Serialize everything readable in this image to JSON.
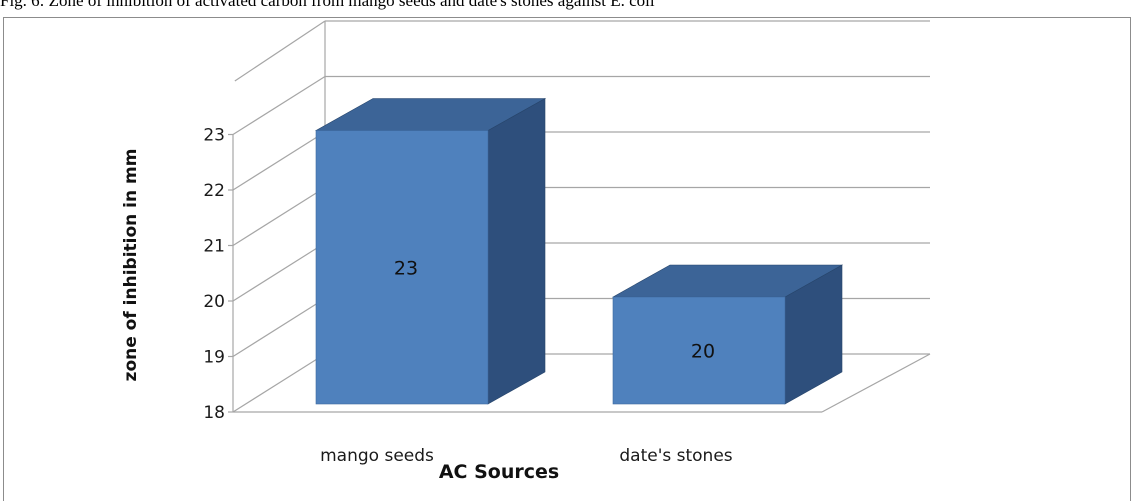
{
  "caption": "Fig. 6: Zone of inhibition of activated carbon from mango seeds and date's stones against E. coli",
  "chart_data": {
    "type": "bar",
    "style": "3d-column",
    "categories": [
      "mango seeds",
      "date's stones"
    ],
    "values": [
      23,
      20
    ],
    "data_labels": [
      "23",
      "20"
    ],
    "title": "",
    "xlabel": "AC  Sources",
    "ylabel": "zone of inhibition in mm",
    "ylim": [
      18,
      23
    ],
    "yticks": [
      "18",
      "19",
      "20",
      "21",
      "22",
      "23"
    ],
    "grid": true,
    "legend": "none",
    "colors": {
      "front": "#4f81bd",
      "top": "#3c6497",
      "side": "#2e4f7c",
      "grid": "#a6a6a6"
    }
  }
}
